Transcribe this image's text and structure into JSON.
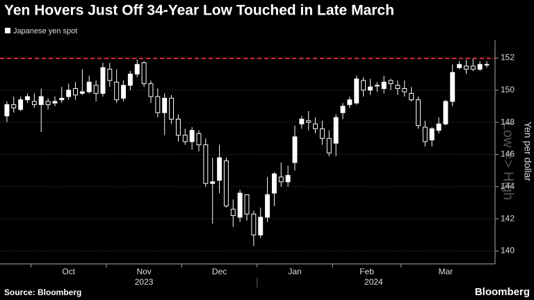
{
  "chart_data": {
    "type": "candlestick",
    "title": "Yen Hovers Just Off 34-Year Low Touched in Late March",
    "legend": "Japanese yen spot",
    "y_label": "Yen per dollar",
    "annotation": "Low => High",
    "source": "Source: Bloomberg",
    "brand": "Bloomberg",
    "up_color": "#ffffff",
    "down_color": "#000000",
    "reference_line": {
      "value": 151.97,
      "color": "#e0242f"
    },
    "categories": [
      null,
      null,
      null,
      null,
      "Oct",
      null,
      null,
      null,
      null,
      null,
      null,
      null,
      null,
      null,
      null,
      "Nov",
      null,
      null,
      null,
      null,
      null,
      null,
      null,
      null,
      null,
      null,
      "Dec",
      null,
      null,
      null,
      null,
      null,
      null,
      null,
      null,
      null,
      null,
      "Jan",
      null,
      null,
      null,
      null,
      null,
      null,
      null,
      null,
      null,
      null,
      "Feb",
      null,
      null,
      null,
      null,
      null,
      null,
      null,
      null,
      null,
      "Mar",
      null,
      null,
      null,
      null,
      null,
      null,
      null,
      null,
      null,
      null,
      null,
      null
    ],
    "years": [
      "2023",
      "2024"
    ],
    "open": [
      148.4,
      149.1,
      148.8,
      149.4,
      149.3,
      149.1,
      149.3,
      149.2,
      149.4,
      149.6,
      150.1,
      149.8,
      149.9,
      150.3,
      149.8,
      151.3,
      150.5,
      149.5,
      150.3,
      151.0,
      151.7,
      150.4,
      149.6,
      148.6,
      149.5,
      148.2,
      147.2,
      146.8,
      147.3,
      146.6,
      144.2,
      144.4,
      145.6,
      142.6,
      142.1,
      143.5,
      142.3,
      141.0,
      142.1,
      143.6,
      144.6,
      144.3,
      145.5,
      147.9,
      148.1,
      147.9,
      147.6,
      147.0,
      146.7,
      148.6,
      149.1,
      149.2,
      150.6,
      150.0,
      150.3,
      150.1,
      150.6,
      150.3,
      150.1,
      149.8,
      149.4,
      147.7,
      146.9,
      147.5,
      147.9,
      149.3,
      151.4,
      151.5,
      151.5,
      151.3,
      151.6
    ],
    "close": [
      149.1,
      148.9,
      149.4,
      149.6,
      149.1,
      149.6,
      149.1,
      149.3,
      149.5,
      150.0,
      149.7,
      149.9,
      150.5,
      149.8,
      151.4,
      150.6,
      149.4,
      150.3,
      151.0,
      151.6,
      150.4,
      149.6,
      148.6,
      149.5,
      148.2,
      147.2,
      146.8,
      147.5,
      146.6,
      144.2,
      144.3,
      145.8,
      142.8,
      142.2,
      143.6,
      142.3,
      141.0,
      142.1,
      143.5,
      144.8,
      144.3,
      144.7,
      147.1,
      148.2,
      148.0,
      147.6,
      147.0,
      146.1,
      148.3,
      149.0,
      149.4,
      150.7,
      150.0,
      150.2,
      150.3,
      150.5,
      150.4,
      150.1,
      149.9,
      149.4,
      147.8,
      146.8,
      147.6,
      147.9,
      149.3,
      151.1,
      151.6,
      151.3,
      151.3,
      151.6,
      151.6
    ],
    "high": [
      149.3,
      149.6,
      149.6,
      149.8,
      149.8,
      150.1,
      149.5,
      149.6,
      150.2,
      150.4,
      150.5,
      151.3,
      150.9,
      150.6,
      151.7,
      151.7,
      151.3,
      150.6,
      151.2,
      151.9,
      151.8,
      150.6,
      150.1,
      149.8,
      149.7,
      148.5,
      147.6,
      147.7,
      147.5,
      147.0,
      145.8,
      146.6,
      145.8,
      143.2,
      143.8,
      143.5,
      142.5,
      142.7,
      144.6,
      144.9,
      145.5,
      145.3,
      147.8,
      148.4,
      148.7,
      148.3,
      148.1,
      147.5,
      148.5,
      149.2,
      149.6,
      150.9,
      150.8,
      150.7,
      150.5,
      150.9,
      150.7,
      150.6,
      150.6,
      150.2,
      149.6,
      148.1,
      147.7,
      148.3,
      149.4,
      151.6,
      151.8,
      151.9,
      152.0,
      151.8,
      151.8
    ],
    "low": [
      148.0,
      148.6,
      148.7,
      149.2,
      148.9,
      147.4,
      148.8,
      149.0,
      149.2,
      149.4,
      149.4,
      149.7,
      149.8,
      149.3,
      149.6,
      150.2,
      149.2,
      149.3,
      150.0,
      150.8,
      150.2,
      149.2,
      148.3,
      147.2,
      147.9,
      146.8,
      146.6,
      146.3,
      146.2,
      144.0,
      141.7,
      143.6,
      142.7,
      141.5,
      141.8,
      141.9,
      140.3,
      140.8,
      141.8,
      142.8,
      144.0,
      144.0,
      145.0,
      147.6,
      147.5,
      147.3,
      146.6,
      145.9,
      145.9,
      148.2,
      148.9,
      149.1,
      149.6,
      149.7,
      149.9,
      149.8,
      150.0,
      149.7,
      149.6,
      149.3,
      147.6,
      146.5,
      146.5,
      147.3,
      147.8,
      149.0,
      151.3,
      151.0,
      151.2,
      151.2,
      151.4
    ],
    "ylim": [
      153.1,
      139.2
    ],
    "yticks": [
      140,
      142,
      144,
      146,
      148,
      150,
      152
    ],
    "grid": true
  }
}
